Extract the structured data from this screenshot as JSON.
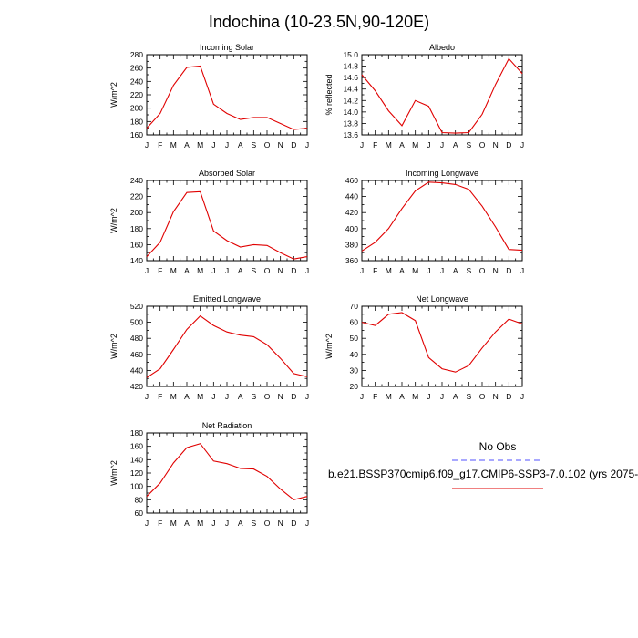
{
  "title": "Indochina (10-23.5N,90-120E)",
  "chart_data": [
    {
      "type": "line",
      "title": "Incoming Solar",
      "ylabel": "W/m^2",
      "categories": [
        "J",
        "F",
        "M",
        "A",
        "M",
        "J",
        "J",
        "A",
        "S",
        "O",
        "N",
        "D",
        "J"
      ],
      "ylim": [
        160,
        280
      ],
      "yticks": [
        160,
        180,
        200,
        220,
        240,
        260,
        280
      ],
      "series": [
        {
          "color": "#e00000",
          "values": [
            170,
            192,
            234,
            261,
            263,
            206,
            192,
            183,
            186,
            186,
            177,
            168,
            170
          ]
        }
      ]
    },
    {
      "type": "line",
      "title": "Albedo",
      "ylabel": "% reflected",
      "categories": [
        "J",
        "F",
        "M",
        "A",
        "M",
        "J",
        "J",
        "A",
        "S",
        "O",
        "N",
        "D",
        "J"
      ],
      "ylim": [
        13.6,
        15.0
      ],
      "yticks": [
        13.6,
        13.8,
        14.0,
        14.2,
        14.4,
        14.6,
        14.8,
        15.0
      ],
      "series": [
        {
          "color": "#e00000",
          "values": [
            14.65,
            14.37,
            14.02,
            13.76,
            14.2,
            14.1,
            13.64,
            13.63,
            13.64,
            13.96,
            14.48,
            14.93,
            14.67
          ]
        }
      ]
    },
    {
      "type": "line",
      "title": "Absorbed Solar",
      "ylabel": "W/m^2",
      "categories": [
        "J",
        "F",
        "M",
        "A",
        "M",
        "J",
        "J",
        "A",
        "S",
        "O",
        "N",
        "D",
        "J"
      ],
      "ylim": [
        140,
        240
      ],
      "yticks": [
        140,
        160,
        180,
        200,
        220,
        240
      ],
      "series": [
        {
          "color": "#e00000",
          "values": [
            145,
            163,
            201,
            225,
            226,
            177,
            165,
            157,
            160,
            159,
            150,
            142,
            145
          ]
        }
      ]
    },
    {
      "type": "line",
      "title": "Incoming Longwave",
      "ylabel": "",
      "categories": [
        "J",
        "F",
        "M",
        "A",
        "M",
        "J",
        "J",
        "A",
        "S",
        "O",
        "N",
        "D",
        "J"
      ],
      "ylim": [
        360,
        460
      ],
      "yticks": [
        360,
        380,
        400,
        420,
        440,
        460
      ],
      "series": [
        {
          "color": "#e00000",
          "values": [
            372,
            383,
            400,
            425,
            447,
            458,
            457,
            455,
            449,
            428,
            402,
            374,
            373
          ]
        }
      ]
    },
    {
      "type": "line",
      "title": "Emitted Longwave",
      "ylabel": "W/m^2",
      "categories": [
        "J",
        "F",
        "M",
        "A",
        "M",
        "J",
        "J",
        "A",
        "S",
        "O",
        "N",
        "D",
        "J"
      ],
      "ylim": [
        420,
        520
      ],
      "yticks": [
        420,
        440,
        460,
        480,
        500,
        520
      ],
      "series": [
        {
          "color": "#e00000",
          "values": [
            431,
            442,
            466,
            491,
            508,
            496,
            488,
            484,
            482,
            472,
            455,
            436,
            432
          ]
        }
      ]
    },
    {
      "type": "line",
      "title": "Net Longwave",
      "ylabel": "W/m^2",
      "categories": [
        "J",
        "F",
        "M",
        "A",
        "M",
        "J",
        "J",
        "A",
        "S",
        "O",
        "N",
        "D",
        "J"
      ],
      "ylim": [
        20,
        70
      ],
      "yticks": [
        20,
        30,
        40,
        50,
        60,
        70
      ],
      "series": [
        {
          "color": "#e00000",
          "values": [
            60,
            58,
            65,
            66,
            61,
            38,
            31,
            29,
            33,
            44,
            54,
            62,
            59
          ]
        }
      ]
    },
    {
      "type": "line",
      "title": "Net Radiation",
      "ylabel": "W/m^2",
      "categories": [
        "J",
        "F",
        "M",
        "A",
        "M",
        "J",
        "J",
        "A",
        "S",
        "O",
        "N",
        "D",
        "J"
      ],
      "ylim": [
        60,
        180
      ],
      "yticks": [
        60,
        80,
        100,
        120,
        140,
        160,
        180
      ],
      "series": [
        {
          "color": "#e00000",
          "values": [
            85,
            105,
            135,
            158,
            164,
            138,
            134,
            127,
            126,
            115,
            96,
            80,
            85
          ]
        }
      ]
    }
  ],
  "legend": {
    "obs_label": "No Obs",
    "obs_color": "#5050ff",
    "model_label": "b.e21.BSSP370cmip6.f09_g17.CMIP6-SSP3-7.0.102 (yrs 2075-",
    "model_color": "#e00000"
  }
}
